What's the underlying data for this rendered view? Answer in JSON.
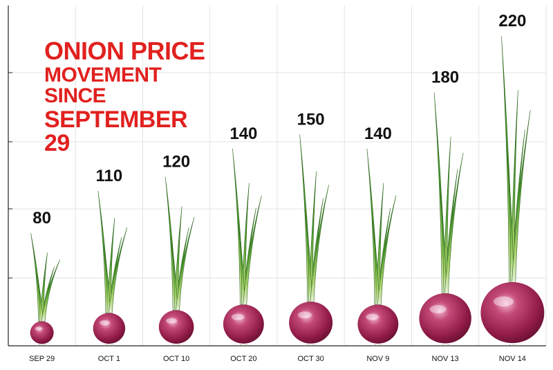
{
  "title_lines": [
    "ONION PRICE",
    "MOVEMENT SINCE",
    "SEPTEMBER 29"
  ],
  "chart_data": {
    "type": "bar",
    "title": "ONION PRICE MOVEMENT SINCE SEPTEMBER 29",
    "categories": [
      "SEP 29",
      "OCT 1",
      "OCT 10",
      "OCT 20",
      "OCT 30",
      "NOV 9",
      "NOV 13",
      "NOV 14"
    ],
    "values": [
      80,
      110,
      120,
      140,
      150,
      140,
      180,
      220
    ],
    "xlabel": "",
    "ylabel": "",
    "grid": true,
    "mark_style": "onion"
  },
  "colors": {
    "title": "#e1211f",
    "bulb": "#8e1a45",
    "bulb_highlight": "#d46a93",
    "stem": "#3f8a2a",
    "stem_light": "#7fbf4a",
    "grid": "#e3e3e3",
    "axis": "#222222",
    "label": "#111111"
  }
}
